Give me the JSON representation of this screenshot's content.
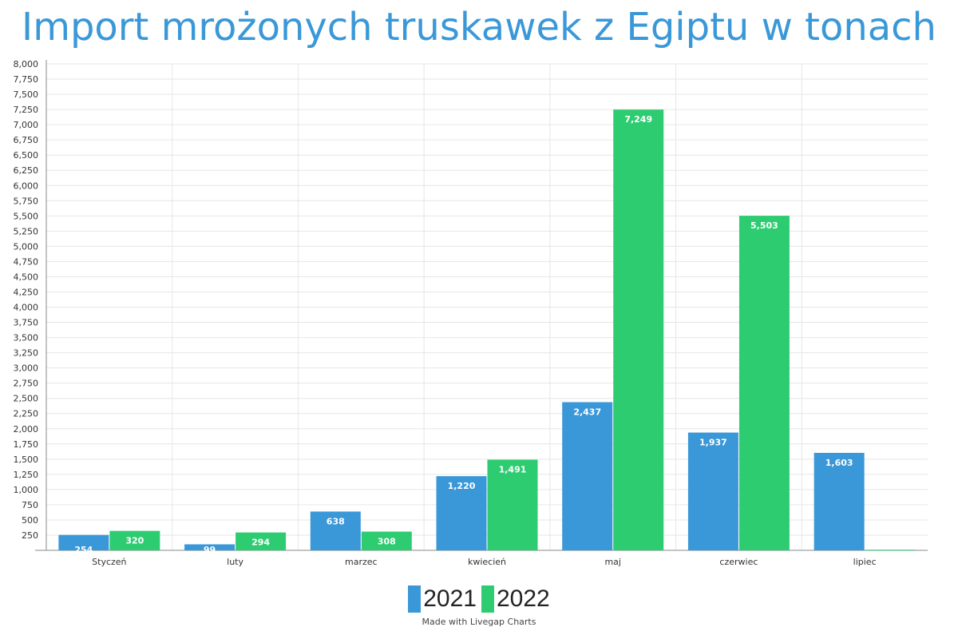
{
  "colors": {
    "series_2021": "#3a98d8",
    "series_2022": "#2ecc71",
    "title": "#3a98d8"
  },
  "chart_data": {
    "type": "bar",
    "title": "Import mrożonych truskawek z Egiptu w tonach",
    "xlabel": "",
    "ylabel": "",
    "ylim": [
      0,
      8000
    ],
    "y_ticks": [
      "250",
      "500",
      "750",
      "1,000",
      "1,250",
      "1,500",
      "1,750",
      "2,000",
      "2,250",
      "2,500",
      "2,750",
      "3,000",
      "3,250",
      "3,500",
      "3,750",
      "4,000",
      "4,250",
      "4,500",
      "4,750",
      "5,000",
      "5,250",
      "5,500",
      "5,750",
      "6,000",
      "6,250",
      "6,500",
      "6,750",
      "7,000",
      "7,250",
      "7,500",
      "7,750",
      "8,000"
    ],
    "categories": [
      "Styczeń",
      "luty",
      "marzec",
      "kwiecień",
      "maj",
      "czerwiec",
      "lipiec"
    ],
    "series": [
      {
        "name": "2021",
        "values": [
          254,
          99,
          638,
          1220,
          2437,
          1937,
          1603
        ],
        "labels": [
          "254",
          "99",
          "638",
          "1,220",
          "2,437",
          "1,937",
          "1,603"
        ]
      },
      {
        "name": "2022",
        "values": [
          320,
          294,
          308,
          1491,
          7249,
          5503,
          10
        ],
        "labels": [
          "320",
          "294",
          "308",
          "1,491",
          "7,249",
          "5,503",
          ""
        ]
      }
    ],
    "grid": true,
    "legend": "bottom-center"
  },
  "footer": {
    "credit": "Made with Livegap Charts"
  }
}
